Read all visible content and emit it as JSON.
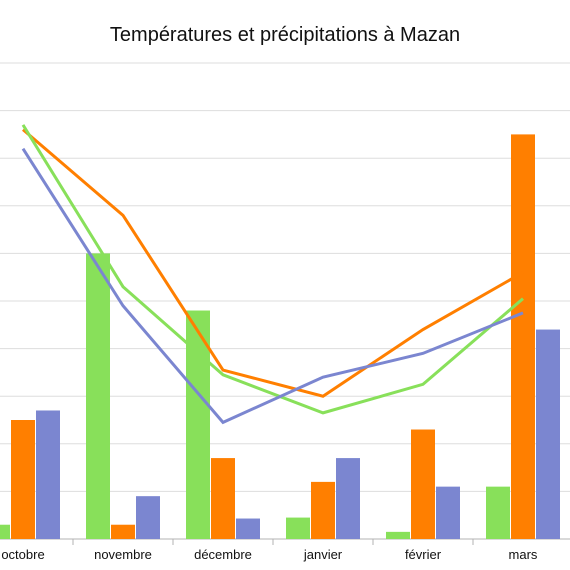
{
  "chart_data": {
    "type": "bar+line",
    "title": "Températures et précipitations à Mazan",
    "categories": [
      "octobre",
      "novembre",
      "décembre",
      "janvier",
      "février",
      "mars"
    ],
    "ylim": [
      0,
      100
    ],
    "grid": true,
    "legend": "none",
    "bar_series": [
      {
        "color": "#88e05a",
        "values": [
          3,
          60,
          48,
          4.5,
          1.5,
          11
        ]
      },
      {
        "color": "#ff7f00",
        "values": [
          25,
          3,
          17,
          12,
          23,
          85
        ]
      },
      {
        "color": "#7b86d0",
        "values": [
          27,
          9,
          4.3,
          17,
          11,
          44
        ]
      }
    ],
    "line_series": [
      {
        "color": "#ff7f00",
        "values": [
          86,
          68,
          35.5,
          30,
          44,
          56
        ]
      },
      {
        "color": "#88e05a",
        "values": [
          87,
          53,
          34.5,
          26.5,
          32.5,
          50.5
        ]
      },
      {
        "color": "#7b86d0",
        "values": [
          82,
          49,
          24.5,
          34,
          39,
          47.5
        ]
      }
    ]
  }
}
